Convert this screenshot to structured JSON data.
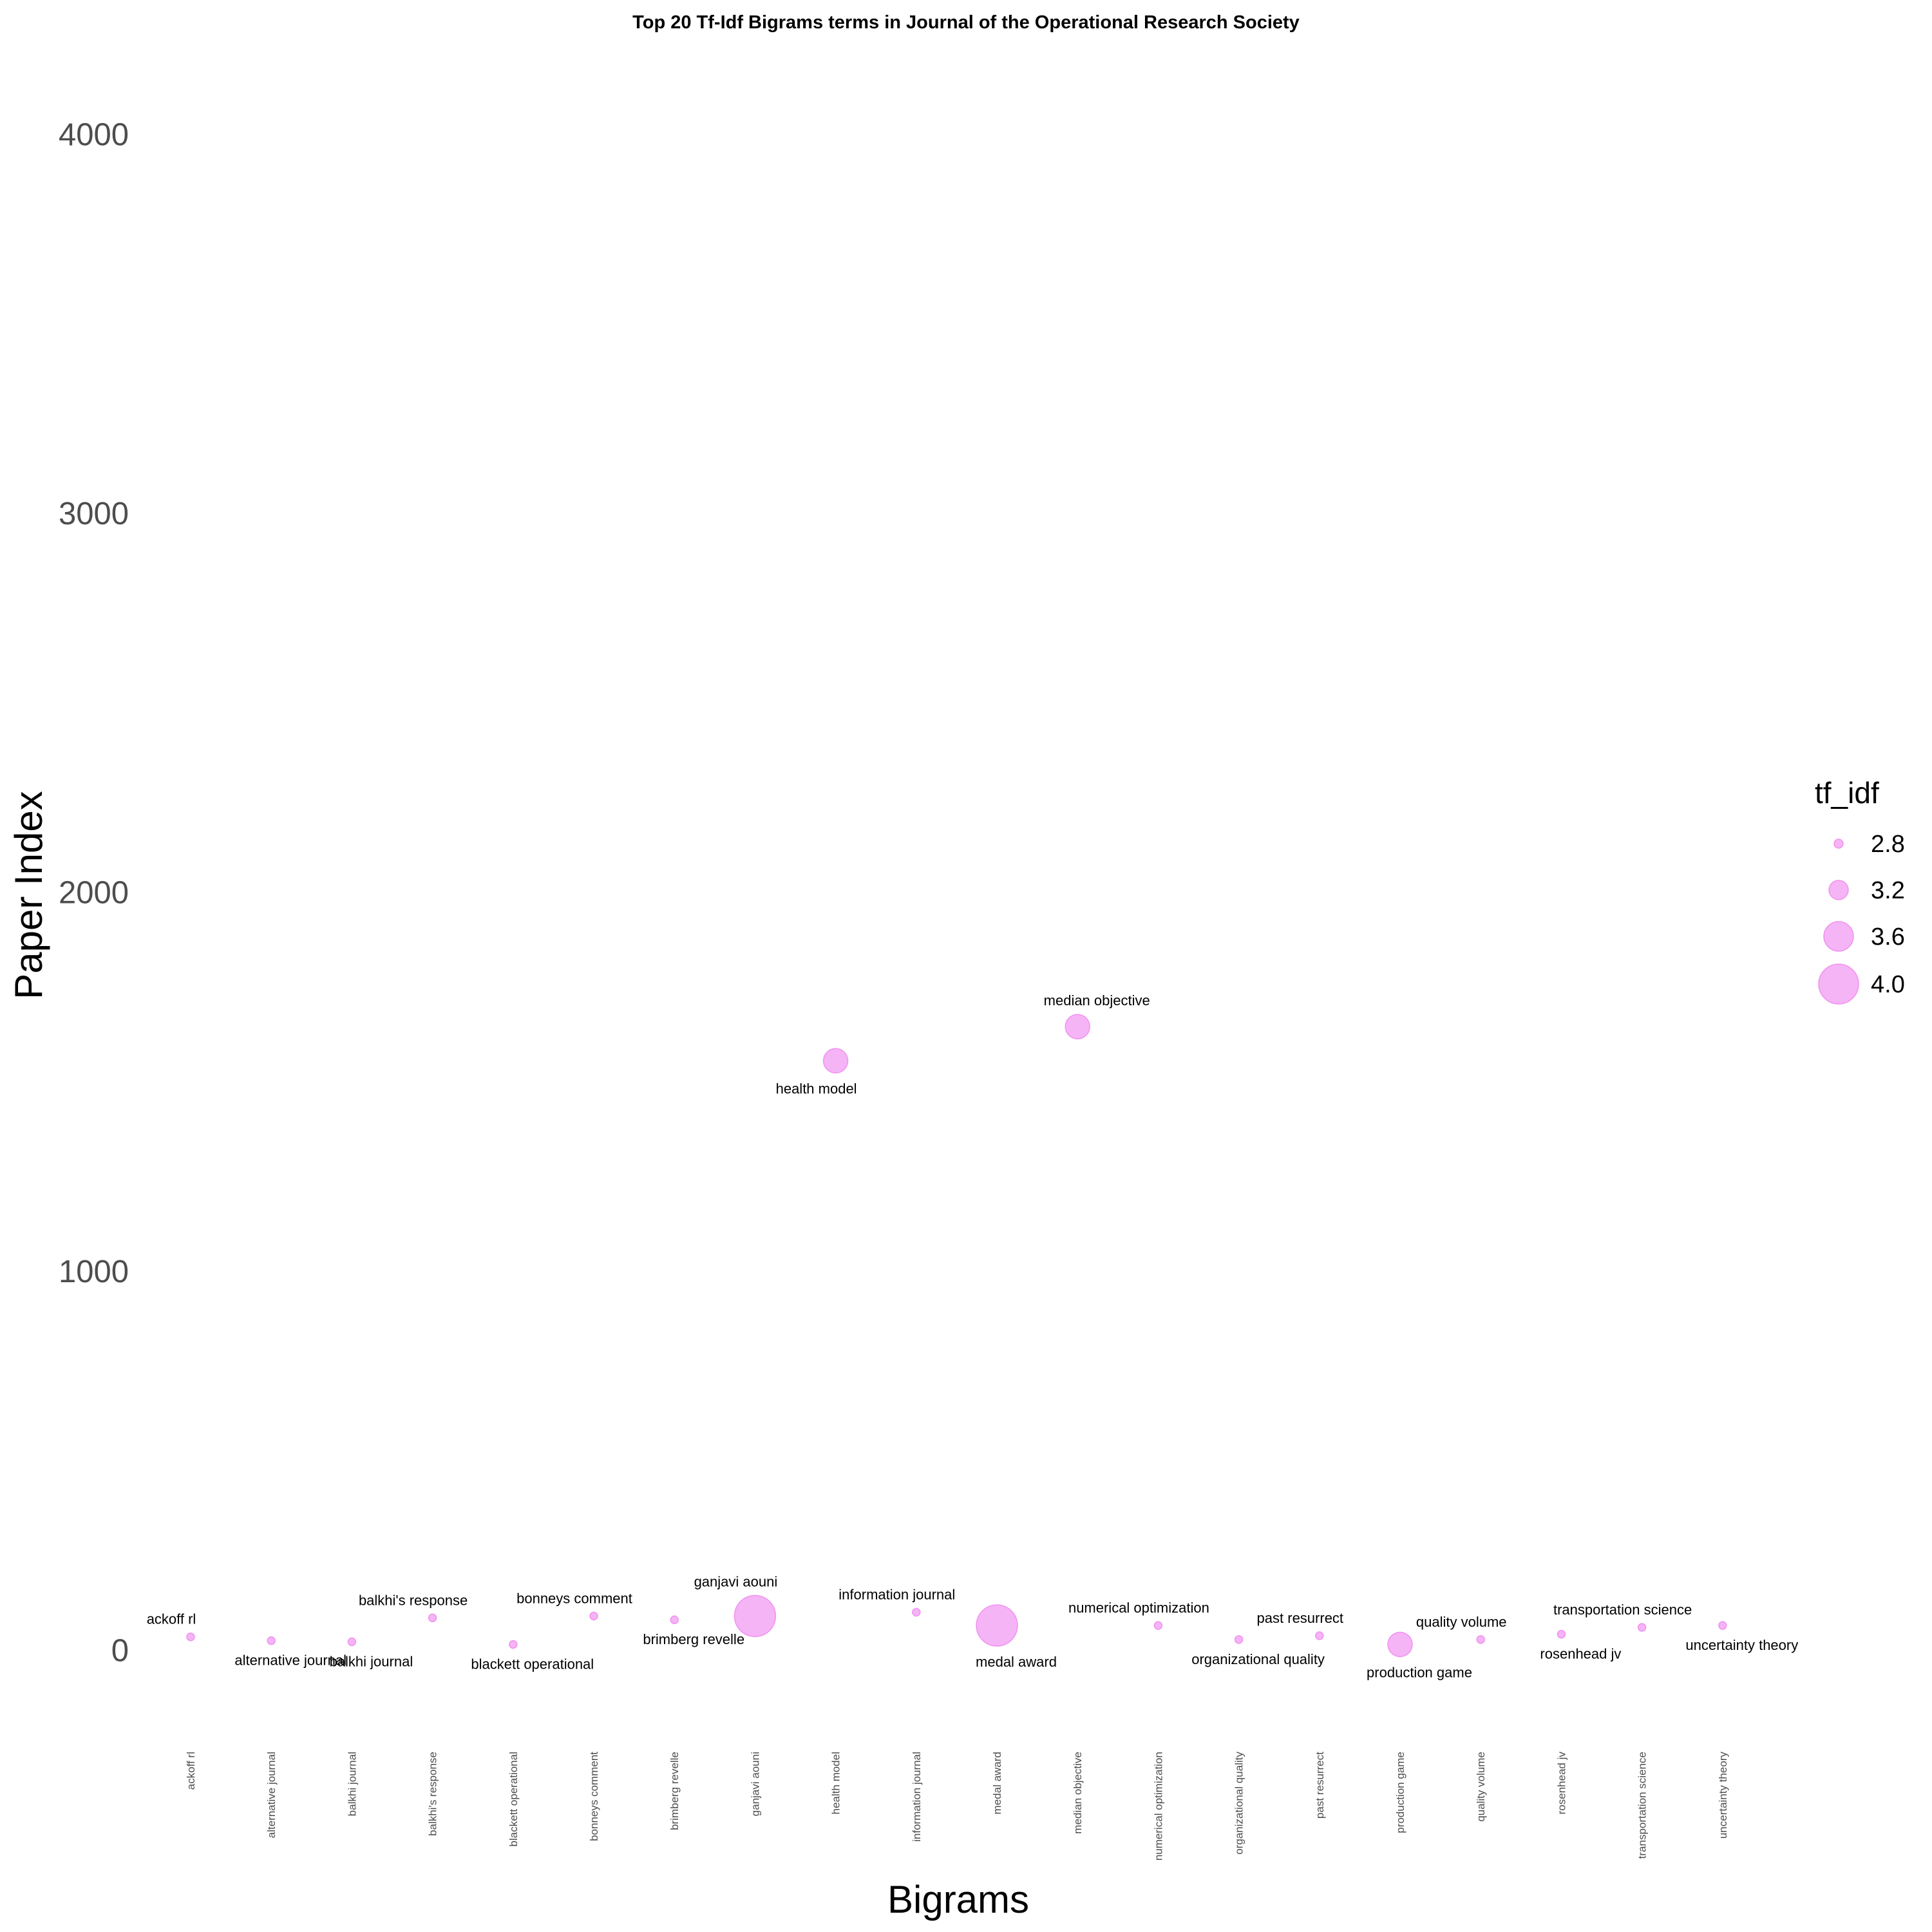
{
  "chart_data": {
    "type": "scatter",
    "title": "Top 20 Tf-Idf Bigrams terms in  Journal of the Operational Research Society",
    "xlabel": "Bigrams",
    "ylabel": "Paper Index",
    "ylim": [
      -200,
      4150
    ],
    "yticks": [
      "0",
      "1000",
      "2000",
      "3000",
      "4000"
    ],
    "grid": false,
    "point_color": "#ee82ee",
    "legend": {
      "title": "tf_idf",
      "position": "right",
      "entries": [
        {
          "label": "2.8",
          "value": 2.8
        },
        {
          "label": "3.2",
          "value": 3.2
        },
        {
          "label": "3.6",
          "value": 3.6
        },
        {
          "label": "4.0",
          "value": 4.0
        }
      ]
    },
    "points": [
      {
        "term": "ackoff rl",
        "y": 35,
        "tf_idf": 2.75,
        "label_pos": "above-left"
      },
      {
        "term": "alternative journal",
        "y": 25,
        "tf_idf": 2.72,
        "label_pos": "below-right"
      },
      {
        "term": "balkhi journal",
        "y": 22,
        "tf_idf": 2.72,
        "label_pos": "below-right"
      },
      {
        "term": "balkhi's response",
        "y": 85,
        "tf_idf": 2.72,
        "label_pos": "above-left"
      },
      {
        "term": "blackett operational",
        "y": 15,
        "tf_idf": 2.72,
        "label_pos": "below-right"
      },
      {
        "term": "bonneys comment",
        "y": 90,
        "tf_idf": 2.75,
        "label_pos": "above-left"
      },
      {
        "term": "brimberg revelle",
        "y": 80,
        "tf_idf": 2.72,
        "label_pos": "below-right"
      },
      {
        "term": "ganjavi aouni",
        "y": 90,
        "tf_idf": 4.05,
        "label_pos": "above-left"
      },
      {
        "term": "health model",
        "y": 1555,
        "tf_idf": 3.4,
        "label_pos": "below-left"
      },
      {
        "term": "information journal",
        "y": 100,
        "tf_idf": 2.72,
        "label_pos": "above-left"
      },
      {
        "term": "medal award",
        "y": 65,
        "tf_idf": 4.05,
        "label_pos": "below-right"
      },
      {
        "term": "median objective",
        "y": 1645,
        "tf_idf": 3.4,
        "label_pos": "above-right"
      },
      {
        "term": "numerical optimization",
        "y": 65,
        "tf_idf": 2.72,
        "label_pos": "above-left"
      },
      {
        "term": "organizational quality",
        "y": 28,
        "tf_idf": 2.72,
        "label_pos": "below-right"
      },
      {
        "term": "past resurrect",
        "y": 38,
        "tf_idf": 2.72,
        "label_pos": "above-left"
      },
      {
        "term": "production game",
        "y": 15,
        "tf_idf": 3.4,
        "label_pos": "below-right"
      },
      {
        "term": "quality volume",
        "y": 28,
        "tf_idf": 2.72,
        "label_pos": "above-left"
      },
      {
        "term": "rosenhead jv",
        "y": 42,
        "tf_idf": 2.72,
        "label_pos": "below-right"
      },
      {
        "term": "transportation science",
        "y": 60,
        "tf_idf": 2.72,
        "label_pos": "above-left"
      },
      {
        "term": "uncertainty theory",
        "y": 65,
        "tf_idf": 2.72,
        "label_pos": "below-right"
      }
    ]
  }
}
